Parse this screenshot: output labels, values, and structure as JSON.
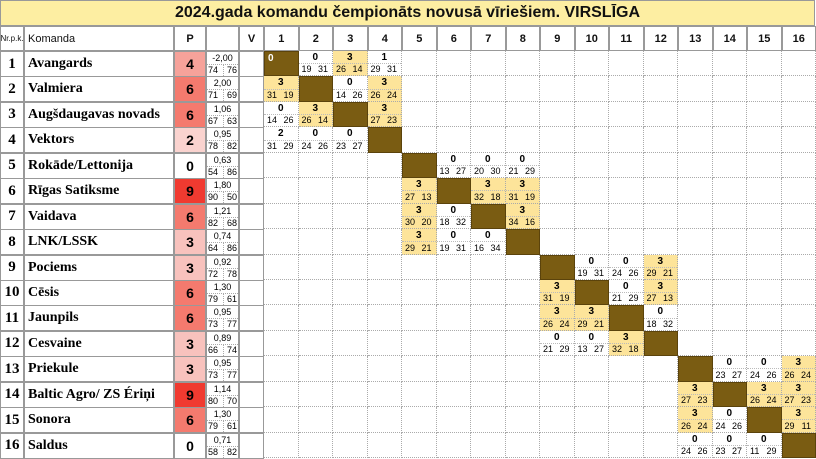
{
  "title": "2024.gada komandu čempionāts novusā vīriešiem.  VIRSLĪGA",
  "headers": {
    "nr": "Nr.p.k.",
    "team": "Komanda",
    "points": "P",
    "v": "V",
    "cols": [
      "1",
      "2",
      "3",
      "4",
      "5",
      "6",
      "7",
      "8",
      "9",
      "10",
      "11",
      "12",
      "13",
      "14",
      "15",
      "16"
    ]
  },
  "colors": {
    "p9": "#f03a30",
    "p6": "#f47a6e",
    "p4": "#f6a29a",
    "p3": "#f8c2bd",
    "p2": "#fad3cf",
    "p0": "#ffffff",
    "self": "#7a5c12",
    "win": "#fde49a"
  },
  "teams": [
    {
      "nr": "1",
      "name": "Avangards",
      "p": "4",
      "diff": "-2,00",
      "dl": "74",
      "dr": "76"
    },
    {
      "nr": "2",
      "name": "Valmiera",
      "p": "6",
      "diff": "2,00",
      "dl": "71",
      "dr": "69"
    },
    {
      "nr": "3",
      "name": "Augšdaugavas novads",
      "p": "6",
      "diff": "1,06",
      "dl": "67",
      "dr": "63"
    },
    {
      "nr": "4",
      "name": "Vektors",
      "p": "2",
      "diff": "0,95",
      "dl": "78",
      "dr": "82"
    },
    {
      "nr": "5",
      "name": "Rokāde/Lettonija",
      "p": "0",
      "diff": "0,63",
      "dl": "54",
      "dr": "86"
    },
    {
      "nr": "6",
      "name": "Rīgas Satiksme",
      "p": "9",
      "diff": "1,80",
      "dl": "90",
      "dr": "50"
    },
    {
      "nr": "7",
      "name": "Vaidava",
      "p": "6",
      "diff": "1,21",
      "dl": "82",
      "dr": "68"
    },
    {
      "nr": "8",
      "name": "LNK/LSSK",
      "p": "3",
      "diff": "0,74",
      "dl": "64",
      "dr": "86"
    },
    {
      "nr": "9",
      "name": "Pociems",
      "p": "3",
      "diff": "0,92",
      "dl": "72",
      "dr": "78"
    },
    {
      "nr": "10",
      "name": "Cēsis",
      "p": "6",
      "diff": "1,30",
      "dl": "79",
      "dr": "61"
    },
    {
      "nr": "11",
      "name": "Jaunpils",
      "p": "6",
      "diff": "0,95",
      "dl": "73",
      "dr": "77"
    },
    {
      "nr": "12",
      "name": "Cesvaine",
      "p": "3",
      "diff": "0,89",
      "dl": "66",
      "dr": "74"
    },
    {
      "nr": "13",
      "name": "Priekule",
      "p": "3",
      "diff": "0,95",
      "dl": "73",
      "dr": "77"
    },
    {
      "nr": "14",
      "name": "Baltic Agro/ ZS Ériņi",
      "p": "9",
      "diff": "1,14",
      "dl": "80",
      "dr": "70"
    },
    {
      "nr": "15",
      "name": "Sonora",
      "p": "6",
      "diff": "1,30",
      "dl": "79",
      "dr": "61"
    },
    {
      "nr": "16",
      "name": "Saldus",
      "p": "0",
      "diff": "0,71",
      "dl": "58",
      "dr": "82"
    }
  ],
  "selfLabels": {
    "1": "0"
  },
  "results": [
    {
      "r": 1,
      "c": 2,
      "p": "0",
      "a": "19",
      "b": "31"
    },
    {
      "r": 1,
      "c": 3,
      "p": "3",
      "a": "26",
      "b": "14"
    },
    {
      "r": 1,
      "c": 4,
      "p": "1",
      "a": "29",
      "b": "31"
    },
    {
      "r": 2,
      "c": 1,
      "p": "3",
      "a": "31",
      "b": "19"
    },
    {
      "r": 2,
      "c": 3,
      "p": "0",
      "a": "14",
      "b": "26"
    },
    {
      "r": 2,
      "c": 4,
      "p": "3",
      "a": "26",
      "b": "24"
    },
    {
      "r": 3,
      "c": 1,
      "p": "0",
      "a": "14",
      "b": "26"
    },
    {
      "r": 3,
      "c": 2,
      "p": "3",
      "a": "26",
      "b": "14"
    },
    {
      "r": 3,
      "c": 4,
      "p": "3",
      "a": "27",
      "b": "23"
    },
    {
      "r": 4,
      "c": 1,
      "p": "2",
      "a": "31",
      "b": "29"
    },
    {
      "r": 4,
      "c": 2,
      "p": "0",
      "a": "24",
      "b": "26"
    },
    {
      "r": 4,
      "c": 3,
      "p": "0",
      "a": "23",
      "b": "27"
    },
    {
      "r": 5,
      "c": 6,
      "p": "0",
      "a": "13",
      "b": "27"
    },
    {
      "r": 5,
      "c": 7,
      "p": "0",
      "a": "20",
      "b": "30"
    },
    {
      "r": 5,
      "c": 8,
      "p": "0",
      "a": "21",
      "b": "29"
    },
    {
      "r": 6,
      "c": 5,
      "p": "3",
      "a": "27",
      "b": "13"
    },
    {
      "r": 6,
      "c": 7,
      "p": "3",
      "a": "32",
      "b": "18"
    },
    {
      "r": 6,
      "c": 8,
      "p": "3",
      "a": "31",
      "b": "19"
    },
    {
      "r": 7,
      "c": 5,
      "p": "3",
      "a": "30",
      "b": "20"
    },
    {
      "r": 7,
      "c": 6,
      "p": "0",
      "a": "18",
      "b": "32"
    },
    {
      "r": 7,
      "c": 8,
      "p": "3",
      "a": "34",
      "b": "16"
    },
    {
      "r": 8,
      "c": 5,
      "p": "3",
      "a": "29",
      "b": "21"
    },
    {
      "r": 8,
      "c": 6,
      "p": "0",
      "a": "19",
      "b": "31"
    },
    {
      "r": 8,
      "c": 7,
      "p": "0",
      "a": "16",
      "b": "34"
    },
    {
      "r": 9,
      "c": 10,
      "p": "0",
      "a": "19",
      "b": "31"
    },
    {
      "r": 9,
      "c": 11,
      "p": "0",
      "a": "24",
      "b": "26"
    },
    {
      "r": 9,
      "c": 12,
      "p": "3",
      "a": "29",
      "b": "21"
    },
    {
      "r": 10,
      "c": 9,
      "p": "3",
      "a": "31",
      "b": "19"
    },
    {
      "r": 10,
      "c": 11,
      "p": "0",
      "a": "21",
      "b": "29"
    },
    {
      "r": 10,
      "c": 12,
      "p": "3",
      "a": "27",
      "b": "13"
    },
    {
      "r": 11,
      "c": 9,
      "p": "3",
      "a": "26",
      "b": "24"
    },
    {
      "r": 11,
      "c": 10,
      "p": "3",
      "a": "29",
      "b": "21"
    },
    {
      "r": 11,
      "c": 12,
      "p": "0",
      "a": "18",
      "b": "32"
    },
    {
      "r": 12,
      "c": 9,
      "p": "0",
      "a": "21",
      "b": "29"
    },
    {
      "r": 12,
      "c": 10,
      "p": "0",
      "a": "13",
      "b": "27"
    },
    {
      "r": 12,
      "c": 11,
      "p": "3",
      "a": "32",
      "b": "18"
    },
    {
      "r": 13,
      "c": 14,
      "p": "0",
      "a": "23",
      "b": "27"
    },
    {
      "r": 13,
      "c": 15,
      "p": "0",
      "a": "24",
      "b": "26"
    },
    {
      "r": 13,
      "c": 16,
      "p": "3",
      "a": "26",
      "b": "24"
    },
    {
      "r": 14,
      "c": 13,
      "p": "3",
      "a": "27",
      "b": "23"
    },
    {
      "r": 14,
      "c": 15,
      "p": "3",
      "a": "26",
      "b": "24"
    },
    {
      "r": 14,
      "c": 16,
      "p": "3",
      "a": "27",
      "b": "23"
    },
    {
      "r": 15,
      "c": 13,
      "p": "3",
      "a": "26",
      "b": "24"
    },
    {
      "r": 15,
      "c": 14,
      "p": "0",
      "a": "24",
      "b": "26"
    },
    {
      "r": 15,
      "c": 16,
      "p": "3",
      "a": "29",
      "b": "11"
    },
    {
      "r": 16,
      "c": 13,
      "p": "0",
      "a": "24",
      "b": "26"
    },
    {
      "r": 16,
      "c": 14,
      "p": "0",
      "a": "23",
      "b": "27"
    },
    {
      "r": 16,
      "c": 15,
      "p": "0",
      "a": "11",
      "b": "29"
    }
  ]
}
